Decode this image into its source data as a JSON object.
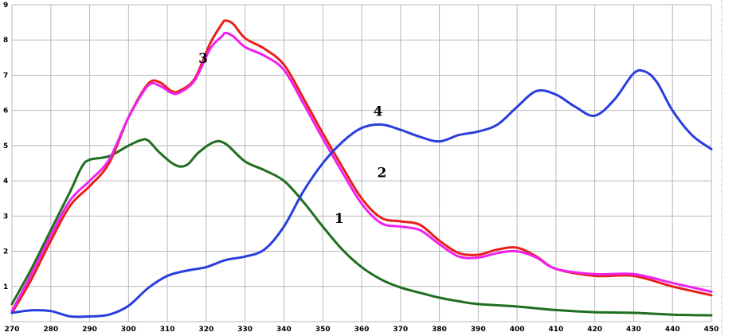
{
  "chart_data": {
    "type": "line",
    "title": "",
    "xlabel": "",
    "ylabel": "",
    "xlim": [
      270,
      450
    ],
    "ylim": [
      0,
      9
    ],
    "grid": true,
    "x_ticks": [
      "270",
      "280",
      "290",
      "300",
      "310",
      "320",
      "330",
      "340",
      "350",
      "360",
      "370",
      "380",
      "390",
      "400",
      "410",
      "420",
      "430",
      "440",
      "450"
    ],
    "y_ticks": [
      "1",
      "2",
      "3",
      "4",
      "5",
      "6",
      "7",
      "8",
      "9"
    ],
    "series": [
      {
        "label": "1",
        "color": "#1f6e1f",
        "label_at": [
          353,
          2.8
        ],
        "points": [
          [
            270,
            0.5
          ],
          [
            275,
            1.5
          ],
          [
            280,
            2.6
          ],
          [
            285,
            3.7
          ],
          [
            288,
            4.4
          ],
          [
            290,
            4.6
          ],
          [
            295,
            4.7
          ],
          [
            300,
            5.0
          ],
          [
            303,
            5.15
          ],
          [
            305,
            5.15
          ],
          [
            308,
            4.8
          ],
          [
            312,
            4.45
          ],
          [
            315,
            4.45
          ],
          [
            318,
            4.8
          ],
          [
            322,
            5.1
          ],
          [
            325,
            5.05
          ],
          [
            330,
            4.55
          ],
          [
            335,
            4.3
          ],
          [
            340,
            4.0
          ],
          [
            345,
            3.4
          ],
          [
            350,
            2.7
          ],
          [
            355,
            2.05
          ],
          [
            360,
            1.55
          ],
          [
            365,
            1.2
          ],
          [
            370,
            0.97
          ],
          [
            375,
            0.82
          ],
          [
            380,
            0.68
          ],
          [
            385,
            0.58
          ],
          [
            390,
            0.5
          ],
          [
            400,
            0.43
          ],
          [
            410,
            0.33
          ],
          [
            420,
            0.27
          ],
          [
            430,
            0.25
          ],
          [
            440,
            0.2
          ],
          [
            450,
            0.18
          ]
        ]
      },
      {
        "label": "2",
        "color": "#e8201c",
        "label_at": [
          364,
          4.1
        ],
        "points": [
          [
            270,
            0.25
          ],
          [
            275,
            1.2
          ],
          [
            280,
            2.3
          ],
          [
            285,
            3.3
          ],
          [
            290,
            3.85
          ],
          [
            295,
            4.5
          ],
          [
            300,
            5.8
          ],
          [
            305,
            6.75
          ],
          [
            308,
            6.8
          ],
          [
            311,
            6.55
          ],
          [
            313,
            6.55
          ],
          [
            317,
            6.9
          ],
          [
            321,
            7.9
          ],
          [
            324,
            8.45
          ],
          [
            325,
            8.55
          ],
          [
            327,
            8.45
          ],
          [
            330,
            8.05
          ],
          [
            335,
            7.75
          ],
          [
            340,
            7.3
          ],
          [
            345,
            6.35
          ],
          [
            350,
            5.35
          ],
          [
            355,
            4.4
          ],
          [
            360,
            3.5
          ],
          [
            365,
            2.95
          ],
          [
            370,
            2.85
          ],
          [
            375,
            2.75
          ],
          [
            380,
            2.3
          ],
          [
            385,
            1.95
          ],
          [
            390,
            1.9
          ],
          [
            395,
            2.05
          ],
          [
            400,
            2.1
          ],
          [
            405,
            1.85
          ],
          [
            410,
            1.5
          ],
          [
            420,
            1.3
          ],
          [
            430,
            1.3
          ],
          [
            440,
            1.0
          ],
          [
            450,
            0.75
          ]
        ]
      },
      {
        "label": "3",
        "color": "#ee22ee",
        "label_at": [
          318,
          7.35
        ],
        "points": [
          [
            270,
            0.3
          ],
          [
            275,
            1.35
          ],
          [
            280,
            2.45
          ],
          [
            285,
            3.45
          ],
          [
            290,
            4.0
          ],
          [
            295,
            4.6
          ],
          [
            300,
            5.8
          ],
          [
            305,
            6.7
          ],
          [
            308,
            6.7
          ],
          [
            311,
            6.5
          ],
          [
            313,
            6.5
          ],
          [
            317,
            6.85
          ],
          [
            321,
            7.75
          ],
          [
            324,
            8.1
          ],
          [
            325,
            8.2
          ],
          [
            327,
            8.1
          ],
          [
            330,
            7.8
          ],
          [
            335,
            7.55
          ],
          [
            340,
            7.15
          ],
          [
            345,
            6.2
          ],
          [
            350,
            5.2
          ],
          [
            355,
            4.25
          ],
          [
            360,
            3.35
          ],
          [
            365,
            2.8
          ],
          [
            370,
            2.7
          ],
          [
            375,
            2.6
          ],
          [
            380,
            2.2
          ],
          [
            385,
            1.85
          ],
          [
            390,
            1.82
          ],
          [
            395,
            1.95
          ],
          [
            400,
            2.0
          ],
          [
            405,
            1.82
          ],
          [
            410,
            1.5
          ],
          [
            420,
            1.35
          ],
          [
            430,
            1.35
          ],
          [
            440,
            1.1
          ],
          [
            450,
            0.85
          ]
        ]
      },
      {
        "label": "4",
        "color": "#2a3ddd",
        "label_at": [
          363,
          5.85
        ],
        "points": [
          [
            270,
            0.25
          ],
          [
            275,
            0.32
          ],
          [
            280,
            0.3
          ],
          [
            285,
            0.15
          ],
          [
            290,
            0.15
          ],
          [
            295,
            0.2
          ],
          [
            300,
            0.45
          ],
          [
            305,
            0.95
          ],
          [
            310,
            1.3
          ],
          [
            315,
            1.45
          ],
          [
            320,
            1.55
          ],
          [
            325,
            1.75
          ],
          [
            330,
            1.85
          ],
          [
            335,
            2.05
          ],
          [
            340,
            2.7
          ],
          [
            345,
            3.7
          ],
          [
            350,
            4.5
          ],
          [
            355,
            5.1
          ],
          [
            360,
            5.5
          ],
          [
            365,
            5.6
          ],
          [
            370,
            5.45
          ],
          [
            375,
            5.25
          ],
          [
            380,
            5.12
          ],
          [
            385,
            5.3
          ],
          [
            390,
            5.4
          ],
          [
            395,
            5.6
          ],
          [
            400,
            6.1
          ],
          [
            405,
            6.55
          ],
          [
            410,
            6.45
          ],
          [
            415,
            6.1
          ],
          [
            420,
            5.85
          ],
          [
            425,
            6.3
          ],
          [
            430,
            7.05
          ],
          [
            433,
            7.1
          ],
          [
            436,
            6.8
          ],
          [
            440,
            6.0
          ],
          [
            445,
            5.3
          ],
          [
            450,
            4.9
          ]
        ]
      }
    ]
  }
}
